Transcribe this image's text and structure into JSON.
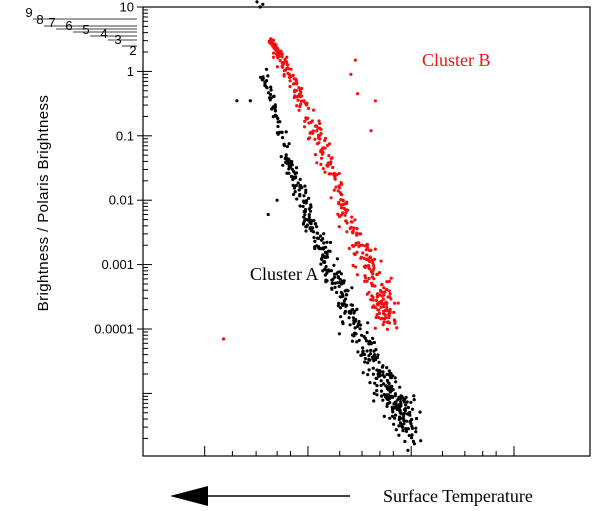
{
  "chart_data": {
    "type": "scatter",
    "ylabel": "Brightness / Polaris Brightness",
    "xlabel": "Surface Temperature",
    "y_scale": "log",
    "ylim": [
      2e-06,
      10
    ],
    "y_ticks": [
      {
        "value": 10,
        "label": "10"
      },
      {
        "value": 1,
        "label": "1"
      },
      {
        "value": 0.1,
        "label": "0.1"
      },
      {
        "value": 0.01,
        "label": "0.01"
      },
      {
        "value": 0.001,
        "label": "0.001"
      },
      {
        "value": 0.0001,
        "label": "0.0001"
      }
    ],
    "y_minor_labels": [
      "9",
      "8",
      "7",
      "6",
      "5",
      "4",
      "3",
      "2"
    ],
    "x_direction_arrow": "left",
    "grid": false,
    "series": [
      {
        "name": "Cluster A",
        "color": "#000000",
        "trend": [
          [
            0.27,
            1
          ],
          [
            0.33,
            0.03
          ],
          [
            0.38,
            0.004
          ],
          [
            0.44,
            0.0004
          ],
          [
            0.5,
            4e-05
          ],
          [
            0.56,
            8e-06
          ],
          [
            0.6,
            3e-06
          ]
        ],
        "jitter": [
          0.028,
          0.35
        ],
        "count": 520,
        "outliers": [
          [
            0.255,
            12
          ],
          [
            0.268,
            11
          ],
          [
            0.262,
            10
          ],
          [
            0.21,
            0.35
          ],
          [
            0.24,
            0.35
          ],
          [
            0.3,
            0.01
          ],
          [
            0.28,
            0.006
          ]
        ]
      },
      {
        "name": "Cluster B",
        "color": "#ee1111",
        "trend": [
          [
            0.285,
            3
          ],
          [
            0.33,
            0.9
          ],
          [
            0.38,
            0.15
          ],
          [
            0.43,
            0.02
          ],
          [
            0.48,
            0.002
          ],
          [
            0.53,
            0.0004
          ],
          [
            0.55,
            0.00015
          ]
        ],
        "jitter": [
          0.026,
          0.3
        ],
        "count": 380,
        "outliers": [
          [
            0.475,
            1.5
          ],
          [
            0.465,
            0.9
          ],
          [
            0.48,
            0.45
          ],
          [
            0.52,
            0.35
          ],
          [
            0.51,
            0.12
          ],
          [
            0.18,
            7e-05
          ]
        ]
      }
    ]
  }
}
